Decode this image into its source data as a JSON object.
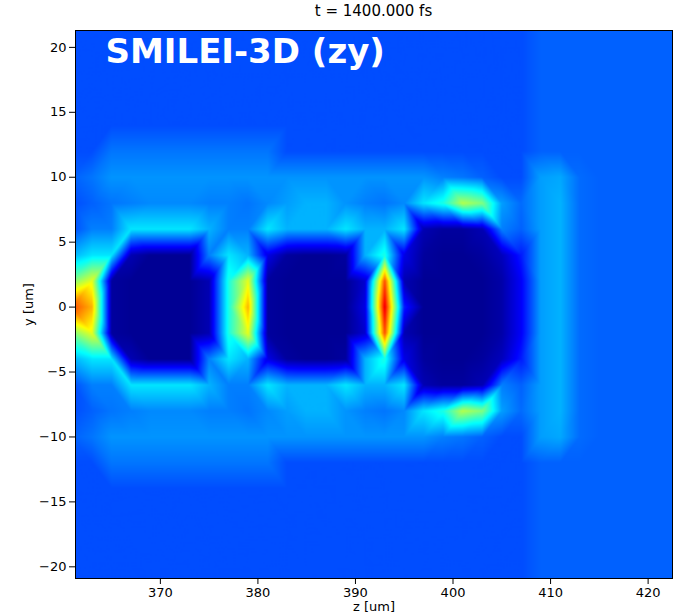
{
  "chart_data": {
    "type": "heatmap",
    "title": "t = 1400.000 fs",
    "x_label": "z [um]",
    "y_label": "y [um]",
    "annotation": "SMILEI-3D (zy)",
    "xlim": [
      361.3,
      422.5
    ],
    "ylim": [
      -20.9,
      21.3
    ],
    "xticks": [
      370,
      380,
      390,
      400,
      410,
      420
    ],
    "yticks": [
      -20,
      -15,
      -10,
      -5,
      0,
      5,
      10,
      15,
      20
    ],
    "clim": [
      0,
      10
    ],
    "cells": {
      "z": [
        361,
        363,
        365,
        367,
        369,
        371,
        373,
        375,
        377,
        379,
        381,
        383,
        385,
        387,
        389,
        391,
        393,
        395,
        397,
        399,
        401,
        403,
        405,
        407,
        409,
        411,
        413,
        415,
        417,
        419,
        421,
        423
      ],
      "y": [
        22,
        20,
        18,
        16,
        14,
        12,
        10,
        8,
        6,
        4,
        2,
        0,
        -2,
        -4,
        -6,
        -8,
        -10,
        -12,
        -14,
        -16,
        -18,
        -20,
        -22
      ],
      "values": [
        [
          2,
          2,
          2,
          2,
          2,
          2,
          2,
          2,
          2,
          2,
          2,
          2,
          2,
          2,
          2,
          2,
          2,
          2,
          2,
          2,
          2,
          2,
          2,
          2,
          2.2,
          2.2,
          2.2,
          2.2,
          2.2,
          2.2,
          2.2,
          2.2
        ],
        [
          2,
          2,
          2,
          2,
          2,
          2,
          2,
          2,
          2,
          2,
          2,
          2,
          2,
          2,
          2,
          2,
          2,
          2,
          2,
          2,
          2,
          2,
          2,
          2,
          2.2,
          2.2,
          2.2,
          2.2,
          2.2,
          2.2,
          2.2,
          2.2
        ],
        [
          2,
          2,
          2,
          2,
          2,
          2,
          2,
          2,
          2,
          2,
          2,
          2,
          2,
          2,
          2,
          2,
          2,
          2,
          2,
          2,
          2,
          2,
          2,
          2,
          2.2,
          2.2,
          2.2,
          2.2,
          2.2,
          2.2,
          2.2,
          2.2
        ],
        [
          2,
          2,
          2,
          2,
          2,
          2,
          2,
          2,
          2,
          2,
          2,
          2,
          2,
          2,
          2,
          2,
          2,
          2,
          2,
          2,
          2,
          2,
          2,
          2,
          2.2,
          2.2,
          2.2,
          2.2,
          2.2,
          2.2,
          2.2,
          2.2
        ],
        [
          2,
          2,
          2,
          2,
          2,
          2,
          2,
          2,
          2,
          2,
          2,
          2,
          2,
          2,
          2,
          2,
          2,
          2,
          2,
          2,
          2,
          2,
          2,
          2,
          2.2,
          2.2,
          2.2,
          2.2,
          2.2,
          2.2,
          2.2,
          2.2
        ],
        [
          2,
          2,
          2.4,
          2.4,
          2.4,
          2.4,
          2.4,
          2.4,
          2.4,
          2.4,
          2.4,
          2,
          2,
          2,
          2,
          2,
          2,
          2,
          2,
          2,
          2,
          2,
          2,
          2,
          2.2,
          2.2,
          2.2,
          2.2,
          2.2,
          2.2,
          2.2,
          2.2
        ],
        [
          2.2,
          2.4,
          2.7,
          2.7,
          2.7,
          2.7,
          2.7,
          2.7,
          2.7,
          2.7,
          2.7,
          2.7,
          2.7,
          2.7,
          2.7,
          2.7,
          2.7,
          2.7,
          2.7,
          2.5,
          2.4,
          2.2,
          2,
          2,
          2.8,
          2.9,
          2.3,
          2.2,
          2.2,
          2.2,
          2.2,
          2.2
        ],
        [
          2,
          2.2,
          2.4,
          2.5,
          2.6,
          2.6,
          2.6,
          2.5,
          2.5,
          2.4,
          2.6,
          2.8,
          3,
          3,
          2.7,
          2.5,
          2.4,
          2.6,
          3.5,
          4,
          5.5,
          5,
          2.8,
          2.3,
          2.8,
          3,
          2.3,
          2.2,
          2.2,
          2.2,
          2.2,
          2.2
        ],
        [
          2,
          2.5,
          2.5,
          3.5,
          3.5,
          3.5,
          3.5,
          3,
          2.5,
          2.5,
          3.5,
          3,
          3,
          3,
          3.5,
          3,
          3,
          3.5,
          0.5,
          0.3,
          0.3,
          0.5,
          2.5,
          2.2,
          2.8,
          3,
          2.3,
          2.2,
          2.2,
          2.2,
          2.2,
          2.2
        ],
        [
          3,
          3.5,
          3.5,
          0.5,
          0.2,
          0.2,
          0.2,
          2.5,
          3.5,
          3,
          1,
          0.3,
          0.2,
          0.2,
          0.3,
          3,
          4,
          1,
          0.3,
          0.2,
          0.2,
          0.3,
          0.6,
          1.5,
          2.8,
          3,
          2.3,
          2.2,
          2.2,
          2.2,
          2.2,
          2.2
        ],
        [
          5,
          6,
          0.3,
          0.2,
          0.2,
          0.2,
          0.2,
          0.5,
          4,
          6,
          0.3,
          0.2,
          0.2,
          0.2,
          0.2,
          0.8,
          8,
          0.5,
          0.2,
          0.2,
          0.2,
          0.2,
          0.4,
          1.2,
          2.8,
          3,
          2.3,
          2.2,
          2.2,
          2.2,
          2.2,
          2.2
        ],
        [
          8,
          7,
          0.3,
          0.2,
          0.2,
          0.2,
          0.2,
          0.5,
          4,
          7,
          0.3,
          0.2,
          0.2,
          0.2,
          0.2,
          1,
          9,
          1.5,
          0.2,
          0.2,
          0.2,
          0.2,
          0.4,
          1.2,
          2.8,
          3,
          2.3,
          2.2,
          2.2,
          2.2,
          2.2,
          2.2
        ],
        [
          5,
          6,
          0.3,
          0.2,
          0.2,
          0.2,
          0.2,
          0.5,
          4,
          6,
          0.3,
          0.2,
          0.2,
          0.2,
          0.2,
          0.8,
          8,
          0.5,
          0.2,
          0.2,
          0.2,
          0.2,
          0.4,
          1.2,
          2.8,
          3,
          2.3,
          2.2,
          2.2,
          2.2,
          2.2,
          2.2
        ],
        [
          3,
          3.5,
          3.5,
          0.5,
          0.2,
          0.2,
          0.2,
          2.5,
          3.5,
          3,
          1,
          0.3,
          0.2,
          0.2,
          0.3,
          3,
          4,
          1,
          0.3,
          0.2,
          0.2,
          0.3,
          0.6,
          1.5,
          2.8,
          3,
          2.3,
          2.2,
          2.2,
          2.2,
          2.2,
          2.2
        ],
        [
          2,
          2.5,
          2.5,
          3.5,
          3.5,
          3.5,
          3.5,
          3,
          2.5,
          2.5,
          3.5,
          3,
          3,
          3,
          3.5,
          3,
          3,
          3.5,
          0.5,
          0.3,
          0.3,
          0.5,
          2.5,
          2.2,
          2.8,
          3,
          2.3,
          2.2,
          2.2,
          2.2,
          2.2,
          2.2
        ],
        [
          2,
          2.2,
          2.4,
          2.5,
          2.6,
          2.6,
          2.6,
          2.5,
          2.5,
          2.4,
          2.6,
          2.8,
          3,
          3,
          2.7,
          2.5,
          2.4,
          2.6,
          3.5,
          4,
          5.5,
          5,
          2.8,
          2.3,
          2.8,
          3,
          2.3,
          2.2,
          2.2,
          2.2,
          2.2,
          2.2
        ],
        [
          2.2,
          2.4,
          2.7,
          2.7,
          2.7,
          2.7,
          2.7,
          2.7,
          2.7,
          2.7,
          2.7,
          2.7,
          2.7,
          2.7,
          2.7,
          2.7,
          2.7,
          2.7,
          2.7,
          2.5,
          2.4,
          2.2,
          2,
          2,
          2.8,
          2.9,
          2.3,
          2.2,
          2.2,
          2.2,
          2.2,
          2.2
        ],
        [
          2,
          2,
          2.4,
          2.4,
          2.4,
          2.4,
          2.4,
          2.4,
          2.4,
          2.4,
          2.4,
          2,
          2,
          2,
          2,
          2,
          2,
          2,
          2,
          2,
          2,
          2,
          2,
          2,
          2.2,
          2.2,
          2.2,
          2.2,
          2.2,
          2.2,
          2.2,
          2.2
        ],
        [
          2,
          2,
          2,
          2,
          2,
          2,
          2,
          2,
          2,
          2,
          2,
          2,
          2,
          2,
          2,
          2,
          2,
          2,
          2,
          2,
          2,
          2,
          2,
          2,
          2.2,
          2.2,
          2.2,
          2.2,
          2.2,
          2.2,
          2.2,
          2.2
        ],
        [
          2,
          2,
          2,
          2,
          2,
          2,
          2,
          2,
          2,
          2,
          2,
          2,
          2,
          2,
          2,
          2,
          2,
          2,
          2,
          2,
          2,
          2,
          2,
          2,
          2.2,
          2.2,
          2.2,
          2.2,
          2.2,
          2.2,
          2.2,
          2.2
        ],
        [
          2,
          2,
          2,
          2,
          2,
          2,
          2,
          2,
          2,
          2,
          2,
          2,
          2,
          2,
          2,
          2,
          2,
          2,
          2,
          2,
          2,
          2,
          2,
          2,
          2.2,
          2.2,
          2.2,
          2.2,
          2.2,
          2.2,
          2.2,
          2.2
        ],
        [
          2,
          2,
          2,
          2,
          2,
          2,
          2,
          2,
          2,
          2,
          2,
          2,
          2,
          2,
          2,
          2,
          2,
          2,
          2,
          2,
          2,
          2,
          2,
          2,
          2.2,
          2.2,
          2.2,
          2.2,
          2.2,
          2.2,
          2.2,
          2.2
        ],
        [
          2,
          2,
          2,
          2,
          2,
          2,
          2,
          2,
          2,
          2,
          2,
          2,
          2,
          2,
          2,
          2,
          2,
          2,
          2,
          2,
          2,
          2,
          2,
          2,
          2.2,
          2.2,
          2.2,
          2.2,
          2.2,
          2.2,
          2.2,
          2.2
        ]
      ]
    }
  }
}
